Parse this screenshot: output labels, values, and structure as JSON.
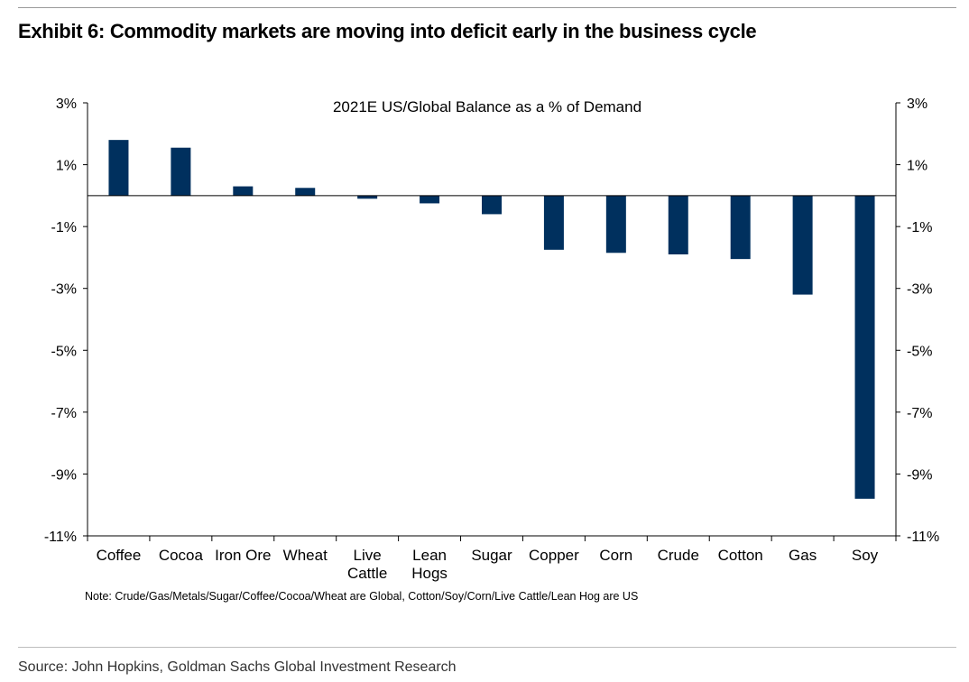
{
  "page": {
    "title": "Exhibit 6: Commodity markets are moving into deficit early in the business cycle",
    "note": "Note: Crude/Gas/Metals/Sugar/Coffee/Cocoa/Wheat are Global, Cotton/Soy/Corn/Live Cattle/Lean Hog are US",
    "source": "Source: John Hopkins, Goldman Sachs Global Investment Research"
  },
  "chart_data": {
    "type": "bar",
    "title": "2021E US/Global Balance as a % of Demand",
    "xlabel": "",
    "ylabel": "",
    "categories": [
      "Coffee",
      "Cocoa",
      "Iron Ore",
      "Wheat",
      "Live Cattle",
      "Lean Hogs",
      "Sugar",
      "Copper",
      "Corn",
      "Crude",
      "Cotton",
      "Gas",
      "Soy"
    ],
    "category_lines": [
      [
        "Coffee"
      ],
      [
        "Cocoa"
      ],
      [
        "Iron Ore"
      ],
      [
        "Wheat"
      ],
      [
        "Live",
        "Cattle"
      ],
      [
        "Lean",
        "Hogs"
      ],
      [
        "Sugar"
      ],
      [
        "Copper"
      ],
      [
        "Corn"
      ],
      [
        "Crude"
      ],
      [
        "Cotton"
      ],
      [
        "Gas"
      ],
      [
        "Soy"
      ]
    ],
    "values": [
      1.8,
      1.55,
      0.3,
      0.25,
      -0.1,
      -0.25,
      -0.6,
      -1.75,
      -1.85,
      -1.9,
      -2.05,
      -3.2,
      -9.8
    ],
    "ylim": [
      -11,
      3
    ],
    "yticks": [
      3,
      1,
      -1,
      -3,
      -5,
      -7,
      -9,
      -11
    ],
    "ytick_labels": [
      "3%",
      "1%",
      "-1%",
      "-3%",
      "-5%",
      "-7%",
      "-9%",
      "-11%"
    ],
    "secondary_axis": true,
    "grid": false,
    "legend": "none",
    "bar_color": "#00305e"
  }
}
